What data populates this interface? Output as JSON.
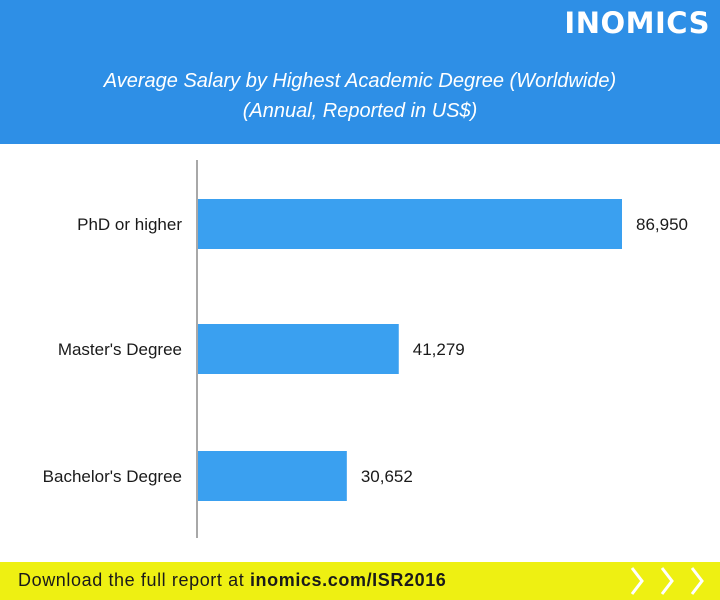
{
  "brand": {
    "logo_text": "INOMICS"
  },
  "header": {
    "title_line1": "Average Salary by Highest Academic Degree (Worldwide)",
    "title_line2": "(Annual, Reported in US$)"
  },
  "chart_data": {
    "type": "bar",
    "orientation": "horizontal",
    "categories": [
      "PhD or higher",
      "Master's Degree",
      "Bachelor's Degree"
    ],
    "values": [
      86950,
      41279,
      30652
    ],
    "value_labels": [
      "86,950",
      "41,279",
      "30,652"
    ],
    "bar_color": "#3aa0f0",
    "grid": false
  },
  "footer": {
    "prefix": "Download the full report at",
    "link": "inomics.com/ISR2016",
    "background": "#eef012"
  },
  "colors": {
    "header": "#2e8fe6",
    "bar": "#3aa0f0",
    "footer": "#eef012"
  }
}
